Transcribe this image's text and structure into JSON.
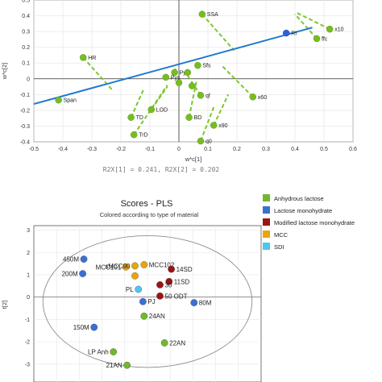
{
  "chart_data": [
    {
      "type": "scatter",
      "xlabel": "w*c[1]",
      "ylabel": "w*c[2]",
      "xlim": [
        -0.5,
        0.6
      ],
      "ylim": [
        -0.4,
        0.5
      ],
      "xticks": [
        "-0.5",
        "-0.4",
        "-0.3",
        "-0.2",
        "-0.1",
        "0",
        "0.1",
        "0.2",
        "0.3",
        "0.4",
        "0.5",
        "0.6"
      ],
      "yticks": [
        "0.5",
        "0.4",
        "0.3",
        "0.2",
        "0.1",
        "0",
        "-0.1",
        "-0.2",
        "-0.3",
        "-0.4"
      ],
      "footer": "R2X[1] = 0.241, R2X[2] = 0.202",
      "regression_line": {
        "x1": -0.5,
        "y1": -0.16,
        "x2": 0.46,
        "y2": 0.325,
        "color": "#1f78d1"
      },
      "response": {
        "label": "RI",
        "x": 0.37,
        "y": 0.29,
        "color": "#2f62d6"
      },
      "colors": {
        "points": "#77bd22",
        "dashes": "#7ec62a"
      },
      "points": [
        {
          "label": "SSA",
          "x": 0.08,
          "y": 0.41
        },
        {
          "label": "x10",
          "x": 0.52,
          "y": 0.315
        },
        {
          "label": "ffc",
          "x": 0.475,
          "y": 0.255
        },
        {
          "label": "HR",
          "x": -0.33,
          "y": 0.135
        },
        {
          "label": "PyF",
          "x": -0.015,
          "y": 0.04
        },
        {
          "label": "Sfs",
          "x": 0.065,
          "y": 0.085
        },
        {
          "label": "Span",
          "x": -0.415,
          "y": -0.135
        },
        {
          "label": "Pys",
          "x": -0.045,
          "y": 0.01
        },
        {
          "label": "qf",
          "x": 0.075,
          "y": -0.105
        },
        {
          "label": "x60",
          "x": 0.255,
          "y": -0.115
        },
        {
          "label": "TD",
          "x": -0.165,
          "y": -0.245
        },
        {
          "label": "LOD",
          "x": -0.095,
          "y": -0.195
        },
        {
          "label": "BD",
          "x": 0.035,
          "y": -0.245
        },
        {
          "label": "x90",
          "x": 0.12,
          "y": -0.295
        },
        {
          "label": "TrD",
          "x": -0.155,
          "y": -0.355
        },
        {
          "label": "q0",
          "x": 0.075,
          "y": -0.395
        },
        {
          "label": "",
          "x": 0.03,
          "y": 0.04
        },
        {
          "label": "",
          "x": 0.0,
          "y": -0.025
        },
        {
          "label": "",
          "x": 0.045,
          "y": -0.045
        }
      ],
      "projection_lines": [
        {
          "x1": 0.08,
          "y1": 0.41,
          "x2": 0.19,
          "y2": 0.18
        },
        {
          "x1": 0.52,
          "y1": 0.315,
          "x2": 0.405,
          "y2": 0.42
        },
        {
          "x1": 0.475,
          "y1": 0.255,
          "x2": 0.4,
          "y2": 0.41
        },
        {
          "x1": -0.33,
          "y1": 0.135,
          "x2": -0.23,
          "y2": -0.07
        },
        {
          "x1": -0.015,
          "y1": 0.04,
          "x2": -0.01,
          "y2": 0.08
        },
        {
          "x1": -0.415,
          "y1": -0.135,
          "x2": -0.41,
          "y2": -0.12
        },
        {
          "x1": 0.075,
          "y1": -0.105,
          "x2": 0.03,
          "y2": 0.02
        },
        {
          "x1": 0.255,
          "y1": -0.115,
          "x2": 0.15,
          "y2": 0.08
        },
        {
          "x1": -0.165,
          "y1": -0.245,
          "x2": -0.12,
          "y2": -0.06
        },
        {
          "x1": -0.095,
          "y1": -0.195,
          "x2": -0.04,
          "y2": -0.05
        },
        {
          "x1": 0.035,
          "y1": -0.245,
          "x2": 0.06,
          "y2": -0.02
        },
        {
          "x1": 0.12,
          "y1": -0.295,
          "x2": 0.17,
          "y2": -0.1
        },
        {
          "x1": -0.155,
          "y1": -0.355,
          "x2": -0.04,
          "y2": -0.04
        },
        {
          "x1": 0.075,
          "y1": -0.395,
          "x2": 0.12,
          "y2": -0.18
        }
      ]
    },
    {
      "type": "scatter",
      "title": "Scores - PLS",
      "subtitle": "Colored according to type of material",
      "ylabel": "t[2]",
      "xlim": [
        -5,
        5
      ],
      "ylim": [
        -3.8,
        3.2
      ],
      "yticks": [
        "3",
        "2",
        "1",
        "0",
        "-1",
        "-2",
        "-3"
      ],
      "legend": {
        "placement": "right",
        "entries": [
          {
            "name": "Anhydrous lactose",
            "color": "#72b82b"
          },
          {
            "name": "Lactose monohydrate",
            "color": "#3b6fd3"
          },
          {
            "name": "Modified lactose monohydrate",
            "color": "#9a1414"
          },
          {
            "name": "MCC",
            "color": "#e8a50e"
          },
          {
            "name": "SDI",
            "color": "#4dc6f0"
          }
        ]
      },
      "points": [
        {
          "label": "450M",
          "x": -2.8,
          "y": 1.7,
          "series": "Lactose monohydrate"
        },
        {
          "label": "200M",
          "x": -2.85,
          "y": 1.05,
          "series": "Lactose monohydrate"
        },
        {
          "label": "MCC101",
          "x": -0.95,
          "y": 1.35,
          "series": "MCC"
        },
        {
          "label": "sMCC90",
          "x": -0.55,
          "y": 1.4,
          "series": "MCC"
        },
        {
          "label": "MCC102",
          "x": -0.15,
          "y": 1.45,
          "series": "MCC"
        },
        {
          "label": "",
          "x": -0.55,
          "y": 0.95,
          "series": "MCC"
        },
        {
          "label": "PL",
          "x": -0.4,
          "y": 0.35,
          "series": "SDI"
        },
        {
          "label": "PJ",
          "x": -0.2,
          "y": -0.2,
          "series": "Lactose monohydrate"
        },
        {
          "label": "14SD",
          "x": 1.05,
          "y": 1.25,
          "series": "Modified lactose monohydrate"
        },
        {
          "label": "11SD",
          "x": 0.95,
          "y": 0.7,
          "series": "Modified lactose monohydrate"
        },
        {
          "label": "30",
          "x": 0.55,
          "y": 0.55,
          "series": "Modified lactose monohydrate"
        },
        {
          "label": "50 ODT",
          "x": 0.55,
          "y": 0.05,
          "series": "Modified lactose monohydrate"
        },
        {
          "label": "80M",
          "x": 2.05,
          "y": -0.25,
          "series": "Lactose monohydrate"
        },
        {
          "label": "150M",
          "x": -2.35,
          "y": -1.35,
          "series": "Lactose monohydrate"
        },
        {
          "label": "24AN",
          "x": -0.15,
          "y": -0.85,
          "series": "Anhydrous lactose"
        },
        {
          "label": "22AN",
          "x": 0.75,
          "y": -2.05,
          "series": "Anhydrous lactose"
        },
        {
          "label": "LP Anh",
          "x": -1.5,
          "y": -2.45,
          "series": "Anhydrous lactose"
        },
        {
          "label": "21AN",
          "x": -0.9,
          "y": -3.05,
          "series": "Anhydrous lactose"
        }
      ],
      "ellipse": {
        "cx": 0,
        "cy": -0.2,
        "rx": 4.6,
        "ry": 2.95
      }
    }
  ]
}
